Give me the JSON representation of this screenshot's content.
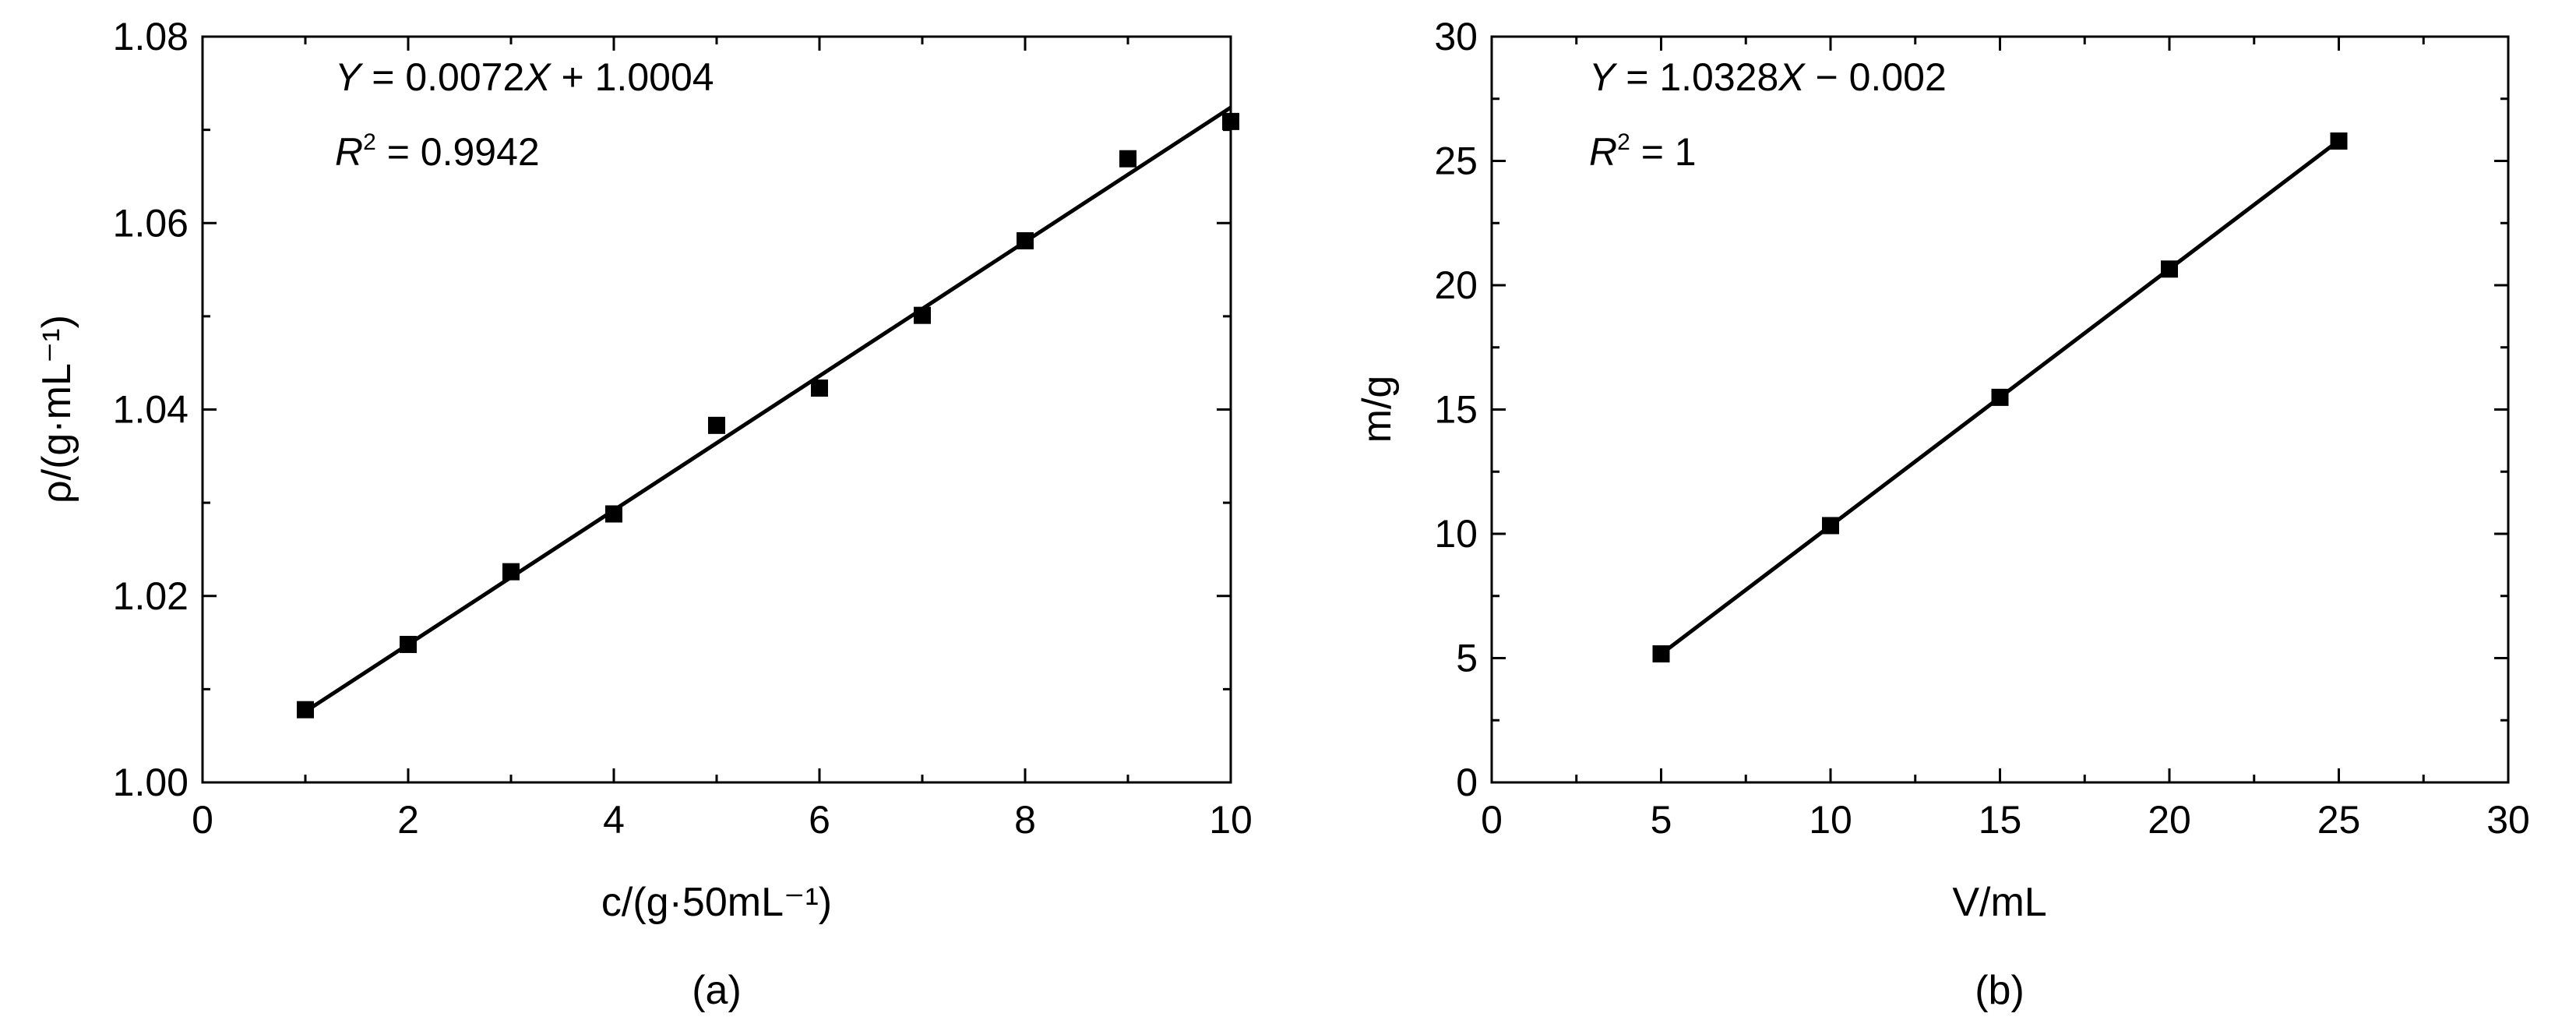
{
  "chart_data": [
    {
      "type": "scatter",
      "panel_label": "(a)",
      "title": "",
      "xlabel": "c/(g·50mL⁻¹)",
      "ylabel": "ρ/(g·mL⁻¹)",
      "xlim": [
        0,
        10
      ],
      "ylim": [
        1.0,
        1.08
      ],
      "x_ticks": [
        "0",
        "2",
        "4",
        "6",
        "8",
        "10"
      ],
      "y_ticks": [
        "1.00",
        "1.02",
        "1.04",
        "1.06",
        "1.08"
      ],
      "grid": false,
      "marker": "square",
      "series": [
        {
          "x": [
            1,
            2,
            3,
            4,
            5,
            6,
            7,
            8,
            9,
            10
          ],
          "y": [
            1.0078,
            1.0148,
            1.0226,
            1.0288,
            1.0383,
            1.0423,
            1.0501,
            1.0581,
            1.0669,
            1.0709
          ]
        }
      ],
      "fit": {
        "slope": 0.0072,
        "intercept": 1.0004,
        "x_range": [
          1,
          10
        ]
      },
      "equation": {
        "lhs": "Y",
        "mid": " = 0.0072",
        "var": "X",
        "rhs": " + 1.0004"
      },
      "r2": {
        "prefix": "R",
        "sup": "2",
        "rest": " = 0.9942"
      }
    },
    {
      "type": "scatter",
      "panel_label": "(b)",
      "title": "",
      "xlabel": "V/mL",
      "ylabel": "m/g",
      "xlim": [
        0,
        30
      ],
      "ylim": [
        0,
        30
      ],
      "x_ticks": [
        "0",
        "5",
        "10",
        "15",
        "20",
        "25",
        "30"
      ],
      "y_ticks": [
        "0",
        "5",
        "10",
        "15",
        "20",
        "25",
        "30"
      ],
      "grid": false,
      "marker": "square",
      "series": [
        {
          "x": [
            5,
            10,
            15,
            20,
            25
          ],
          "y": [
            5.17,
            10.33,
            15.49,
            20.65,
            25.8
          ]
        }
      ],
      "fit": {
        "slope": 1.0328,
        "intercept": -0.002,
        "x_range": [
          5,
          25
        ]
      },
      "equation": {
        "lhs": "Y",
        "mid": " = 1.0328",
        "var": "X",
        "rhs": " − 0.002"
      },
      "r2": {
        "prefix": "R",
        "sup": "2",
        "rest": " = 1"
      }
    }
  ]
}
